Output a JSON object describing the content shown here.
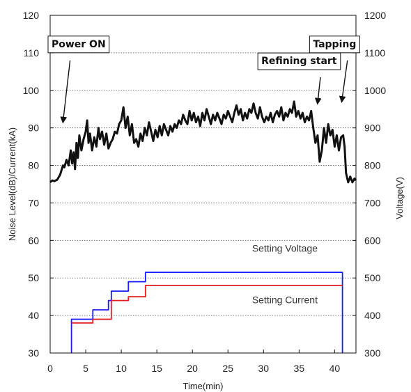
{
  "chart_data": {
    "type": "line",
    "xlabel": "Time(min)",
    "ylabel_left": "Noise Level(dB)/Current(kA)",
    "ylabel_right": "Voltage(V)",
    "xlim": [
      0,
      43
    ],
    "ylim_left": [
      30,
      120
    ],
    "ylim_right": [
      300,
      1200
    ],
    "xticks": [
      0,
      5,
      10,
      15,
      20,
      25,
      30,
      35,
      40
    ],
    "yticks_left": [
      30,
      40,
      50,
      60,
      70,
      80,
      90,
      100,
      110,
      120
    ],
    "yticks_right": [
      300,
      400,
      500,
      600,
      700,
      800,
      900,
      1000,
      1100,
      1200
    ],
    "grid": "horizontal-dotted",
    "series": [
      {
        "name": "",
        "color": "#111111",
        "axis": "left",
        "x": [
          0.0,
          0.3,
          0.6,
          1.0,
          1.4,
          1.8,
          2.0,
          2.3,
          2.6,
          2.9,
          3.1,
          3.3,
          3.5,
          3.7,
          3.9,
          4.1,
          4.4,
          4.7,
          5.0,
          5.2,
          5.4,
          5.6,
          5.9,
          6.2,
          6.5,
          6.8,
          7.0,
          7.3,
          7.6,
          7.9,
          8.2,
          8.5,
          8.8,
          9.1,
          9.4,
          9.7,
          10.0,
          10.3,
          10.6,
          10.9,
          11.2,
          11.5,
          11.8,
          12.1,
          12.4,
          12.7,
          13.0,
          13.3,
          13.6,
          13.9,
          14.2,
          14.5,
          14.8,
          15.1,
          15.4,
          15.7,
          16.0,
          16.3,
          16.6,
          16.9,
          17.2,
          17.5,
          17.8,
          18.1,
          18.4,
          18.7,
          19.0,
          19.3,
          19.6,
          19.9,
          20.2,
          20.5,
          20.8,
          21.1,
          21.4,
          21.7,
          22.0,
          22.3,
          22.6,
          22.9,
          23.2,
          23.5,
          23.8,
          24.1,
          24.4,
          24.7,
          25.0,
          25.3,
          25.6,
          25.9,
          26.2,
          26.5,
          26.8,
          27.1,
          27.4,
          27.7,
          28.0,
          28.3,
          28.6,
          28.9,
          29.2,
          29.5,
          29.8,
          30.1,
          30.4,
          30.7,
          31.0,
          31.3,
          31.6,
          31.9,
          32.2,
          32.5,
          32.8,
          33.1,
          33.4,
          33.7,
          34.0,
          34.3,
          34.6,
          34.9,
          35.2,
          35.5,
          35.8,
          36.1,
          36.4,
          36.7,
          37.0,
          37.3,
          37.6,
          37.9,
          38.2,
          38.5,
          38.8,
          39.1,
          39.4,
          39.7,
          40.0,
          40.3,
          40.6,
          40.9,
          41.2,
          41.4,
          41.6,
          41.9,
          42.2,
          42.5,
          42.8,
          43.0
        ],
        "values": [
          75.5,
          76.0,
          75.8,
          76.2,
          77.5,
          80.0,
          79.5,
          81.5,
          80.0,
          84.0,
          80.5,
          83.5,
          79.0,
          86.0,
          82.0,
          88.0,
          84.0,
          87.0,
          89.0,
          92.0,
          86.0,
          88.5,
          84.0,
          87.5,
          85.0,
          90.0,
          87.0,
          89.0,
          85.5,
          88.5,
          84.5,
          86.0,
          87.0,
          89.0,
          88.5,
          91.0,
          92.0,
          95.5,
          90.0,
          93.0,
          88.0,
          91.0,
          86.0,
          87.0,
          85.0,
          88.5,
          86.5,
          90.0,
          88.0,
          91.5,
          89.0,
          86.5,
          89.5,
          87.5,
          90.5,
          88.0,
          91.0,
          89.5,
          88.0,
          90.5,
          89.0,
          91.0,
          90.0,
          92.0,
          91.0,
          93.5,
          92.0,
          91.0,
          94.5,
          92.0,
          94.0,
          91.5,
          93.0,
          90.5,
          94.0,
          92.0,
          95.0,
          93.0,
          91.0,
          93.5,
          92.0,
          94.0,
          92.5,
          91.0,
          93.5,
          92.5,
          94.5,
          93.0,
          91.5,
          94.0,
          96.0,
          93.5,
          95.0,
          92.0,
          94.0,
          92.5,
          95.0,
          94.0,
          96.5,
          94.0,
          92.5,
          95.5,
          93.0,
          91.5,
          93.0,
          92.0,
          94.0,
          91.5,
          93.5,
          94.5,
          93.0,
          95.5,
          92.0,
          94.0,
          93.0,
          95.0,
          94.0,
          97.0,
          93.0,
          94.5,
          92.5,
          94.0,
          91.5,
          93.0,
          92.0,
          94.5,
          90.0,
          86.0,
          88.0,
          81.0,
          84.0,
          90.0,
          86.0,
          91.0,
          88.0,
          89.5,
          85.0,
          88.0,
          84.0,
          87.5,
          88.0,
          85.0,
          78.0,
          75.5,
          77.0,
          75.5,
          76.5,
          76.0
        ]
      },
      {
        "name": "Setting Voltage",
        "color": "#1a1aff",
        "axis": "right",
        "step": true,
        "x": [
          3.0,
          3.0,
          6.0,
          6.0,
          8.2,
          8.2,
          8.6,
          8.6,
          11.0,
          11.0,
          13.4,
          13.4,
          41.1,
          41.1
        ],
        "values": [
          300,
          390,
          390,
          415,
          415,
          440,
          440,
          465,
          465,
          490,
          490,
          515,
          515,
          300
        ]
      },
      {
        "name": "Setting Current",
        "color": "#e01b1b",
        "axis": "left",
        "step": true,
        "x": [
          3.0,
          6.0,
          6.0,
          8.6,
          8.6,
          11.0,
          11.0,
          13.4,
          13.4,
          41.1
        ],
        "values": [
          38.0,
          38.0,
          39.0,
          39.0,
          44.0,
          44.0,
          45.0,
          45.0,
          48.0,
          48.0
        ]
      }
    ],
    "annotations": [
      {
        "text": "Power ON",
        "x": 4.0,
        "y": 111.5,
        "arrow_from": [
          2.8,
          108.0
        ],
        "arrow_to": [
          1.8,
          91.5
        ]
      },
      {
        "text": "Refining start",
        "x": 35.0,
        "y": 107.0,
        "arrow_from": [
          38.0,
          103.5
        ],
        "arrow_to": [
          37.6,
          96.5
        ]
      },
      {
        "text": "Tapping",
        "x": 40.0,
        "y": 111.5,
        "arrow_from": [
          41.8,
          108.0
        ],
        "arrow_to": [
          41.0,
          97.0
        ]
      }
    ]
  }
}
